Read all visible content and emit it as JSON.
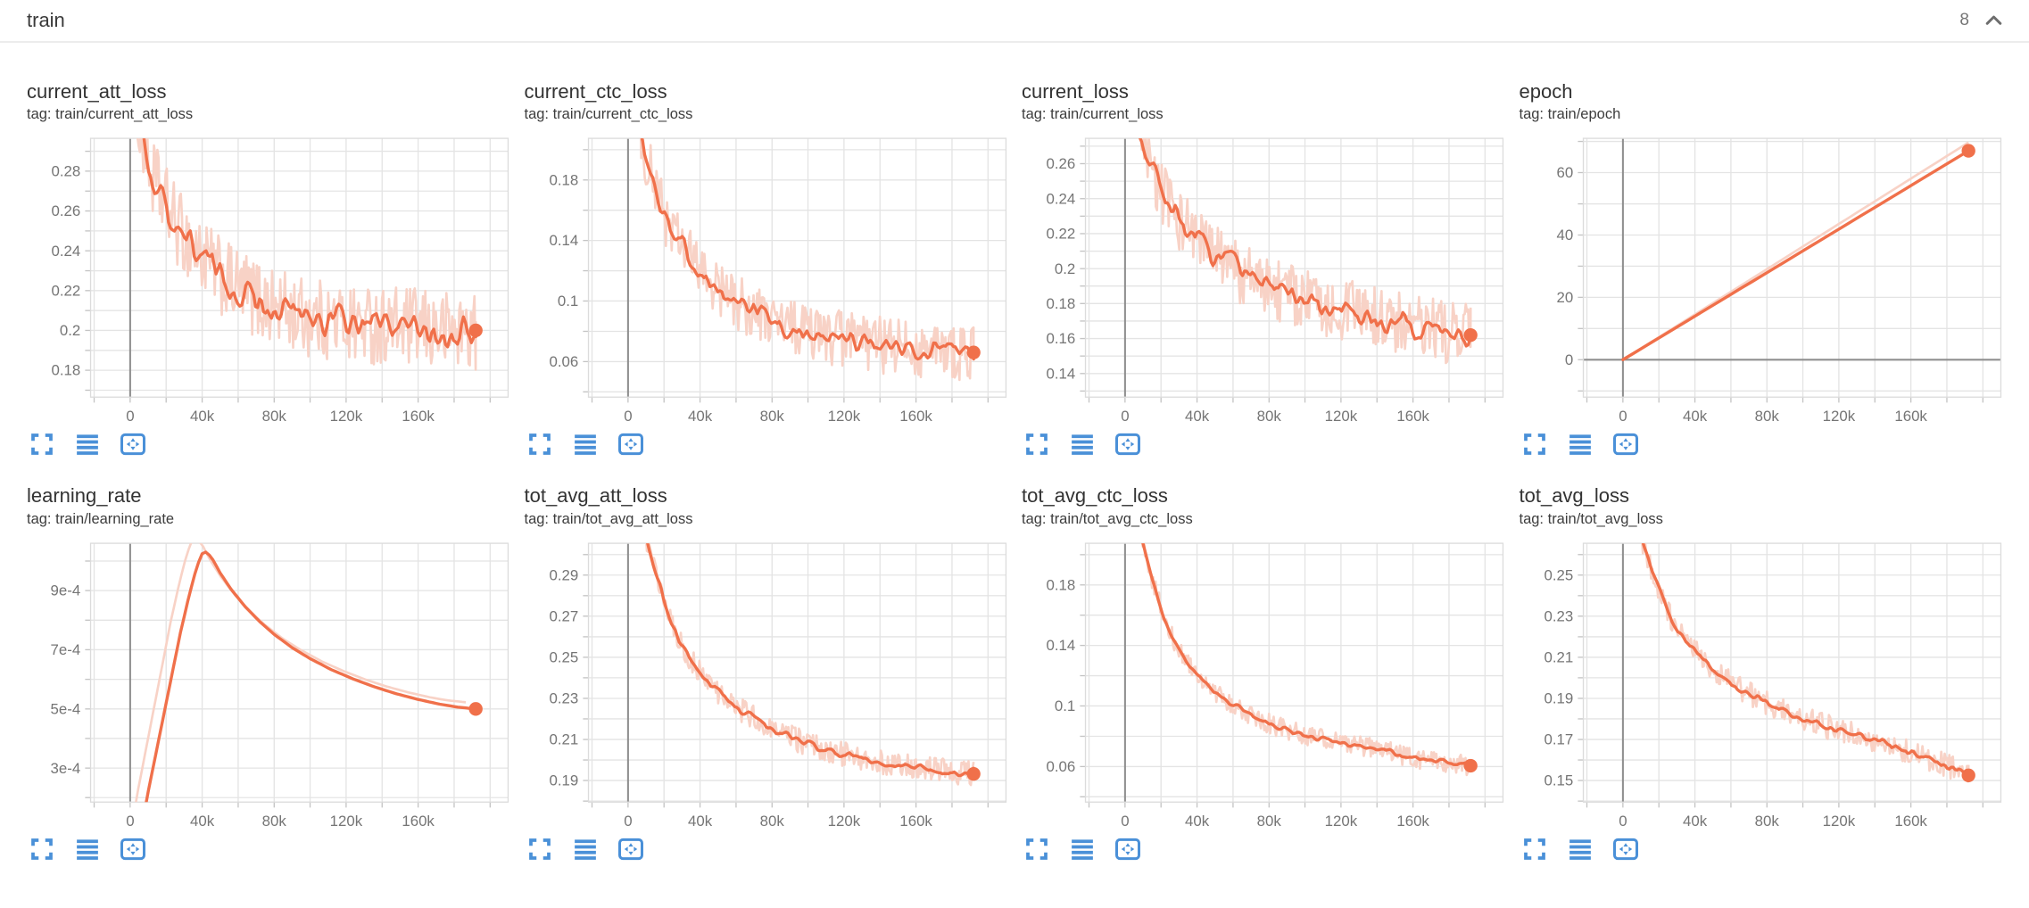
{
  "header": {
    "title": "train",
    "count": "8"
  },
  "colors": {
    "accent_orange": "#f0704a",
    "raw_orange": "#f8d2c6",
    "icon_blue": "#4a90d8",
    "grid": "#e4e4e4",
    "axis_strong": "#8f8f8f",
    "axis_light": "#c4c4c4",
    "tick_label": "#757575",
    "plot_border": "#dcdcdc"
  },
  "chart_data": [
    {
      "type": "line",
      "title": "current_att_loss",
      "tag_line": "tag: train/current_att_loss",
      "x_range": [
        -22000,
        210000
      ],
      "x_minor": 20000,
      "x_ticks": [
        {
          "v": 0,
          "label": "0"
        },
        {
          "v": 40000,
          "label": "40k"
        },
        {
          "v": 80000,
          "label": "80k"
        },
        {
          "v": 120000,
          "label": "120k"
        },
        {
          "v": 160000,
          "label": "160k"
        }
      ],
      "y_range": [
        0.1665,
        0.2965
      ],
      "y_minor": 0.01,
      "y_ticks": [
        {
          "v": 0.18,
          "label": "0.18"
        },
        {
          "v": 0.2,
          "label": "0.2"
        },
        {
          "v": 0.22,
          "label": "0.22"
        },
        {
          "v": 0.24,
          "label": "0.24"
        },
        {
          "v": 0.26,
          "label": "0.26"
        },
        {
          "v": 0.28,
          "label": "0.28"
        }
      ],
      "trend": [
        [
          1500,
          0.345
        ],
        [
          5000,
          0.305
        ],
        [
          9000,
          0.287
        ],
        [
          13000,
          0.275
        ],
        [
          17000,
          0.268
        ],
        [
          21000,
          0.261
        ],
        [
          25000,
          0.254
        ],
        [
          30000,
          0.247
        ],
        [
          35000,
          0.242
        ],
        [
          40000,
          0.237
        ],
        [
          48000,
          0.229
        ],
        [
          56000,
          0.223
        ],
        [
          64000,
          0.219
        ],
        [
          72000,
          0.215
        ],
        [
          80000,
          0.212
        ],
        [
          92000,
          0.208
        ],
        [
          104000,
          0.206
        ],
        [
          118000,
          0.204
        ],
        [
          132000,
          0.203
        ],
        [
          146000,
          0.202
        ],
        [
          160000,
          0.201
        ],
        [
          176000,
          0.2
        ],
        [
          192000,
          0.2
        ]
      ],
      "noise": 0.013,
      "raw_noise": 0.02,
      "end_dot": [
        192000,
        0.2
      ]
    },
    {
      "type": "line",
      "title": "current_ctc_loss",
      "tag_line": "tag: train/current_ctc_loss",
      "x_range": [
        -22000,
        210000
      ],
      "x_minor": 20000,
      "x_ticks": [
        {
          "v": 0,
          "label": "0"
        },
        {
          "v": 40000,
          "label": "40k"
        },
        {
          "v": 80000,
          "label": "80k"
        },
        {
          "v": 120000,
          "label": "120k"
        },
        {
          "v": 160000,
          "label": "160k"
        }
      ],
      "y_range": [
        0.0365,
        0.2075
      ],
      "y_minor": 0.02,
      "y_ticks": [
        {
          "v": 0.06,
          "label": "0.06"
        },
        {
          "v": 0.1,
          "label": "0.1"
        },
        {
          "v": 0.14,
          "label": "0.14"
        },
        {
          "v": 0.18,
          "label": "0.18"
        }
      ],
      "trend": [
        [
          1500,
          0.27
        ],
        [
          5000,
          0.225
        ],
        [
          9000,
          0.2
        ],
        [
          13000,
          0.183
        ],
        [
          17000,
          0.168
        ],
        [
          21000,
          0.155
        ],
        [
          25000,
          0.146
        ],
        [
          30000,
          0.136
        ],
        [
          35000,
          0.127
        ],
        [
          40000,
          0.12
        ],
        [
          48000,
          0.11
        ],
        [
          56000,
          0.102
        ],
        [
          64000,
          0.096
        ],
        [
          72000,
          0.091
        ],
        [
          80000,
          0.087
        ],
        [
          92000,
          0.082
        ],
        [
          104000,
          0.078
        ],
        [
          118000,
          0.075
        ],
        [
          132000,
          0.072
        ],
        [
          146000,
          0.07
        ],
        [
          160000,
          0.068
        ],
        [
          176000,
          0.067
        ],
        [
          192000,
          0.066
        ]
      ],
      "noise": 0.011,
      "raw_noise": 0.019,
      "end_dot": [
        192000,
        0.066
      ]
    },
    {
      "type": "line",
      "title": "current_loss",
      "tag_line": "tag: train/current_loss",
      "x_range": [
        -22000,
        210000
      ],
      "x_minor": 20000,
      "x_ticks": [
        {
          "v": 0,
          "label": "0"
        },
        {
          "v": 40000,
          "label": "40k"
        },
        {
          "v": 80000,
          "label": "80k"
        },
        {
          "v": 120000,
          "label": "120k"
        },
        {
          "v": 160000,
          "label": "160k"
        }
      ],
      "y_range": [
        0.1265,
        0.2745
      ],
      "y_minor": 0.01,
      "y_ticks": [
        {
          "v": 0.14,
          "label": "0.14"
        },
        {
          "v": 0.16,
          "label": "0.16"
        },
        {
          "v": 0.18,
          "label": "0.18"
        },
        {
          "v": 0.2,
          "label": "0.2"
        },
        {
          "v": 0.22,
          "label": "0.22"
        },
        {
          "v": 0.24,
          "label": "0.24"
        },
        {
          "v": 0.26,
          "label": "0.26"
        }
      ],
      "trend": [
        [
          1500,
          0.315
        ],
        [
          5000,
          0.287
        ],
        [
          9000,
          0.27
        ],
        [
          13000,
          0.258
        ],
        [
          17000,
          0.25
        ],
        [
          21000,
          0.243
        ],
        [
          25000,
          0.236
        ],
        [
          30000,
          0.229
        ],
        [
          35000,
          0.223
        ],
        [
          40000,
          0.218
        ],
        [
          48000,
          0.209
        ],
        [
          56000,
          0.203
        ],
        [
          64000,
          0.198
        ],
        [
          72000,
          0.193
        ],
        [
          80000,
          0.19
        ],
        [
          92000,
          0.185
        ],
        [
          104000,
          0.181
        ],
        [
          118000,
          0.177
        ],
        [
          132000,
          0.174
        ],
        [
          146000,
          0.17
        ],
        [
          160000,
          0.167
        ],
        [
          176000,
          0.164
        ],
        [
          192000,
          0.162
        ]
      ],
      "noise": 0.011,
      "raw_noise": 0.018,
      "end_dot": [
        192000,
        0.162
      ]
    },
    {
      "type": "line",
      "title": "epoch",
      "tag_line": "tag: train/epoch",
      "x_range": [
        -22000,
        210000
      ],
      "x_minor": 20000,
      "x_ticks": [
        {
          "v": 0,
          "label": "0"
        },
        {
          "v": 40000,
          "label": "40k"
        },
        {
          "v": 80000,
          "label": "80k"
        },
        {
          "v": 120000,
          "label": "120k"
        },
        {
          "v": 160000,
          "label": "160k"
        }
      ],
      "y_range": [
        -12,
        71
      ],
      "y_minor": 10,
      "y_ticks": [
        {
          "v": 0,
          "label": "0"
        },
        {
          "v": 20,
          "label": "20"
        },
        {
          "v": 40,
          "label": "40"
        },
        {
          "v": 60,
          "label": "60"
        }
      ],
      "trend": [
        [
          0,
          0
        ],
        [
          192000,
          67
        ]
      ],
      "noise": 0,
      "raw_noise": 0,
      "raw_scale": 1.04,
      "smooth_step": 6000,
      "raw_step": 6000,
      "end_dot": [
        192000,
        67
      ]
    },
    {
      "type": "line",
      "title": "learning_rate",
      "tag_line": "tag: train/learning_rate",
      "x_range": [
        -22000,
        210000
      ],
      "x_minor": 20000,
      "x_ticks": [
        {
          "v": 0,
          "label": "0"
        },
        {
          "v": 40000,
          "label": "40k"
        },
        {
          "v": 80000,
          "label": "80k"
        },
        {
          "v": 120000,
          "label": "120k"
        },
        {
          "v": 160000,
          "label": "160k"
        }
      ],
      "y_range": [
        0.000185,
        0.00106
      ],
      "y_minor": 0.0001,
      "y_ticks": [
        {
          "v": 0.0003,
          "label": "3e-4"
        },
        {
          "v": 0.0005,
          "label": "5e-4"
        },
        {
          "v": 0.0007,
          "label": "7e-4"
        },
        {
          "v": 0.0009,
          "label": "9e-4"
        }
      ],
      "trend": [
        [
          4000,
          2e-05
        ],
        [
          10000,
          0.00022
        ],
        [
          16000,
          0.0004
        ],
        [
          22000,
          0.00058
        ],
        [
          28000,
          0.00076
        ],
        [
          33000,
          0.00089
        ],
        [
          37000,
          0.00098
        ],
        [
          40000,
          0.001025
        ],
        [
          42000,
          0.00103
        ],
        [
          45000,
          0.001015
        ],
        [
          50000,
          0.00096
        ],
        [
          56000,
          0.000905
        ],
        [
          64000,
          0.000845
        ],
        [
          72000,
          0.000795
        ],
        [
          80000,
          0.000752
        ],
        [
          90000,
          0.000707
        ],
        [
          100000,
          0.00067
        ],
        [
          112000,
          0.000632
        ],
        [
          124000,
          0.000601
        ],
        [
          136000,
          0.000574
        ],
        [
          148000,
          0.000551
        ],
        [
          160000,
          0.000532
        ],
        [
          172000,
          0.000516
        ],
        [
          182000,
          0.000506
        ],
        [
          192000,
          0.0005
        ]
      ],
      "noise": 0,
      "raw_noise": 0,
      "raw_dx": -5500,
      "raw_scale": 1.045,
      "smooth_step": 2000,
      "raw_step": 2000,
      "end_dot": [
        192000,
        0.0005
      ]
    },
    {
      "type": "line",
      "title": "tot_avg_att_loss",
      "tag_line": "tag: train/tot_avg_att_loss",
      "x_range": [
        -22000,
        210000
      ],
      "x_minor": 20000,
      "x_ticks": [
        {
          "v": 0,
          "label": "0"
        },
        {
          "v": 40000,
          "label": "40k"
        },
        {
          "v": 80000,
          "label": "80k"
        },
        {
          "v": 120000,
          "label": "120k"
        },
        {
          "v": 160000,
          "label": "160k"
        }
      ],
      "y_range": [
        0.1795,
        0.3055
      ],
      "y_minor": 0.01,
      "y_ticks": [
        {
          "v": 0.19,
          "label": "0.19"
        },
        {
          "v": 0.21,
          "label": "0.21"
        },
        {
          "v": 0.23,
          "label": "0.23"
        },
        {
          "v": 0.25,
          "label": "0.25"
        },
        {
          "v": 0.27,
          "label": "0.27"
        },
        {
          "v": 0.29,
          "label": "0.29"
        }
      ],
      "trend": [
        [
          2000,
          0.345
        ],
        [
          6000,
          0.322
        ],
        [
          10000,
          0.308
        ],
        [
          14000,
          0.296
        ],
        [
          18000,
          0.285
        ],
        [
          22000,
          0.272
        ],
        [
          26000,
          0.263
        ],
        [
          30000,
          0.2555
        ],
        [
          34000,
          0.25
        ],
        [
          38000,
          0.2455
        ],
        [
          44000,
          0.239
        ],
        [
          50000,
          0.2335
        ],
        [
          58000,
          0.2275
        ],
        [
          66000,
          0.2225
        ],
        [
          74000,
          0.2185
        ],
        [
          82000,
          0.2145
        ],
        [
          92000,
          0.2105
        ],
        [
          104000,
          0.2065
        ],
        [
          116000,
          0.2035
        ],
        [
          130000,
          0.2008
        ],
        [
          144000,
          0.1985
        ],
        [
          158000,
          0.1965
        ],
        [
          172000,
          0.195
        ],
        [
          182000,
          0.194
        ],
        [
          192000,
          0.1932
        ]
      ],
      "noise": 0.0028,
      "raw_noise": 0.006,
      "end_dot": [
        192000,
        0.1932
      ]
    },
    {
      "type": "line",
      "title": "tot_avg_ctc_loss",
      "tag_line": "tag: train/tot_avg_ctc_loss",
      "x_range": [
        -22000,
        210000
      ],
      "x_minor": 20000,
      "x_ticks": [
        {
          "v": 0,
          "label": "0"
        },
        {
          "v": 40000,
          "label": "40k"
        },
        {
          "v": 80000,
          "label": "80k"
        },
        {
          "v": 120000,
          "label": "120k"
        },
        {
          "v": 160000,
          "label": "160k"
        }
      ],
      "y_range": [
        0.0365,
        0.2075
      ],
      "y_minor": 0.02,
      "y_ticks": [
        {
          "v": 0.06,
          "label": "0.06"
        },
        {
          "v": 0.1,
          "label": "0.1"
        },
        {
          "v": 0.14,
          "label": "0.14"
        },
        {
          "v": 0.18,
          "label": "0.18"
        }
      ],
      "trend": [
        [
          2000,
          0.27
        ],
        [
          6000,
          0.232
        ],
        [
          10000,
          0.207
        ],
        [
          14000,
          0.188
        ],
        [
          18000,
          0.172
        ],
        [
          22000,
          0.157
        ],
        [
          26000,
          0.146
        ],
        [
          30000,
          0.137
        ],
        [
          34000,
          0.13
        ],
        [
          38000,
          0.124
        ],
        [
          44000,
          0.116
        ],
        [
          50000,
          0.109
        ],
        [
          58000,
          0.102
        ],
        [
          66000,
          0.0965
        ],
        [
          74000,
          0.0915
        ],
        [
          82000,
          0.0875
        ],
        [
          92000,
          0.0835
        ],
        [
          104000,
          0.0795
        ],
        [
          116000,
          0.0765
        ],
        [
          130000,
          0.0735
        ],
        [
          144000,
          0.071
        ],
        [
          158000,
          0.066
        ],
        [
          172000,
          0.0635
        ],
        [
          182000,
          0.062
        ],
        [
          192000,
          0.0605
        ]
      ],
      "noise": 0.003,
      "raw_noise": 0.0065,
      "end_dot": [
        192000,
        0.0605
      ]
    },
    {
      "type": "line",
      "title": "tot_avg_loss",
      "tag_line": "tag: train/tot_avg_loss",
      "x_range": [
        -22000,
        210000
      ],
      "x_minor": 20000,
      "x_ticks": [
        {
          "v": 0,
          "label": "0"
        },
        {
          "v": 40000,
          "label": "40k"
        },
        {
          "v": 80000,
          "label": "80k"
        },
        {
          "v": 120000,
          "label": "120k"
        },
        {
          "v": 160000,
          "label": "160k"
        }
      ],
      "y_range": [
        0.1395,
        0.2655
      ],
      "y_minor": 0.01,
      "y_ticks": [
        {
          "v": 0.15,
          "label": "0.15"
        },
        {
          "v": 0.17,
          "label": "0.17"
        },
        {
          "v": 0.19,
          "label": "0.19"
        },
        {
          "v": 0.21,
          "label": "0.21"
        },
        {
          "v": 0.23,
          "label": "0.23"
        },
        {
          "v": 0.25,
          "label": "0.25"
        }
      ],
      "trend": [
        [
          2000,
          0.305
        ],
        [
          6000,
          0.282
        ],
        [
          10000,
          0.268
        ],
        [
          14000,
          0.257
        ],
        [
          18000,
          0.247
        ],
        [
          22000,
          0.2375
        ],
        [
          26000,
          0.23
        ],
        [
          30000,
          0.2235
        ],
        [
          34000,
          0.2185
        ],
        [
          38000,
          0.2145
        ],
        [
          44000,
          0.209
        ],
        [
          50000,
          0.2045
        ],
        [
          58000,
          0.199
        ],
        [
          66000,
          0.1945
        ],
        [
          74000,
          0.1905
        ],
        [
          82000,
          0.187
        ],
        [
          92000,
          0.183
        ],
        [
          104000,
          0.179
        ],
        [
          116000,
          0.1755
        ],
        [
          130000,
          0.172
        ],
        [
          144000,
          0.1685
        ],
        [
          158000,
          0.164
        ],
        [
          172000,
          0.16
        ],
        [
          182000,
          0.1565
        ],
        [
          192000,
          0.1525
        ]
      ],
      "noise": 0.0028,
      "raw_noise": 0.006,
      "end_dot": [
        192000,
        0.1525
      ]
    }
  ]
}
